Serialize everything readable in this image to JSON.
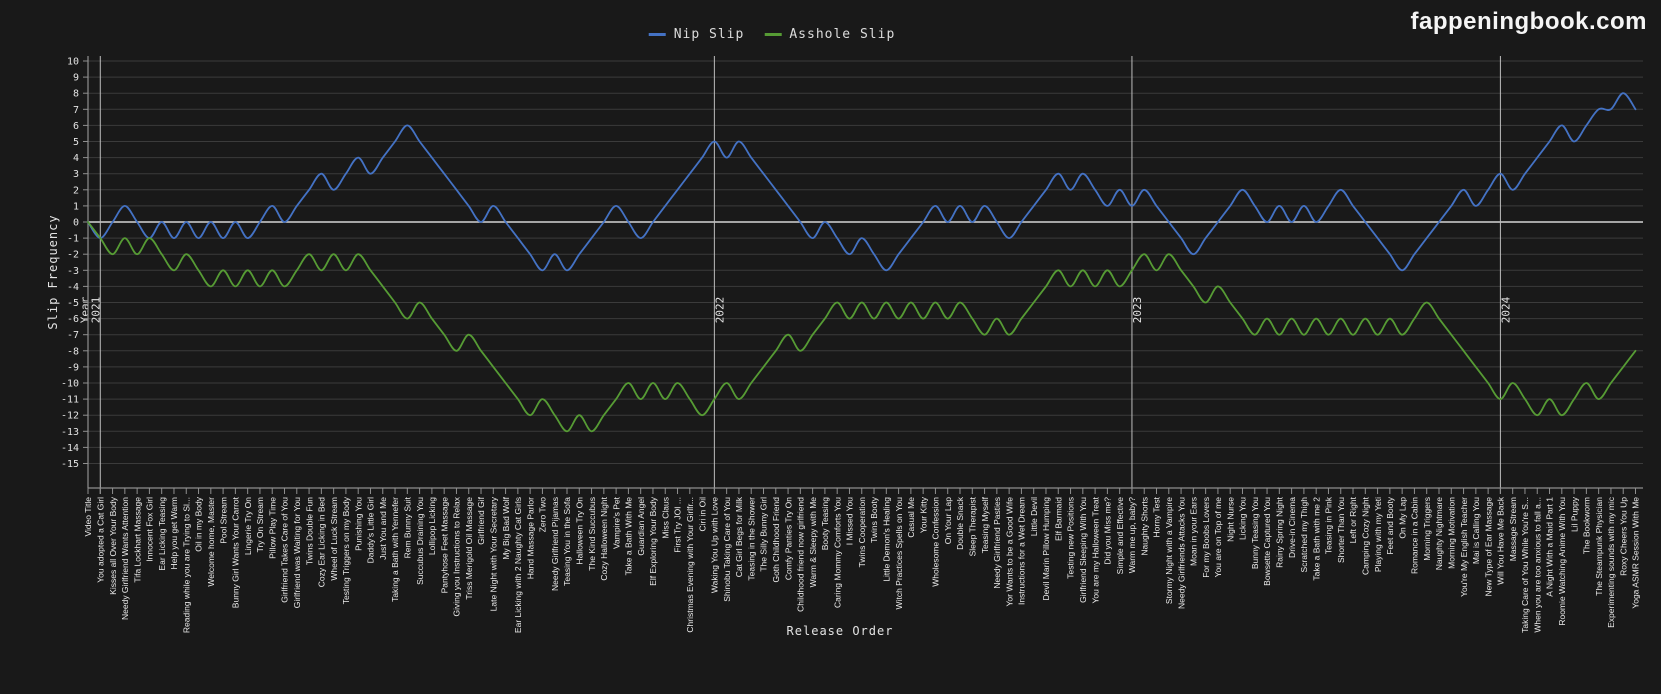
{
  "site": {
    "logo": "fappeningbook.com"
  },
  "colors": {
    "background": "#191919",
    "grid": "#3b3b3b",
    "zero_line": "#d4d4d4",
    "year_line": "#bdbdbd",
    "spine": "#8f8f8f",
    "tick_text": "#e3e3e3",
    "category_text": "#ececec",
    "nip_slip": "#4472c4",
    "asshole_slip": "#569b34"
  },
  "chart_data": {
    "type": "line",
    "title": "",
    "xlabel": "Release Order",
    "ylabel": "Slip Frequency",
    "ylim": [
      -15,
      10
    ],
    "grid": true,
    "legend_position": "top-center",
    "yticks": [
      10,
      9,
      8,
      7,
      6,
      5,
      4,
      3,
      2,
      1,
      0,
      -1,
      -2,
      -3,
      -4,
      -5,
      -6,
      -7,
      -8,
      -9,
      -10,
      -11,
      -12,
      -13,
      -14,
      -15
    ],
    "year_markers": [
      {
        "index": 1,
        "labels": [
          "Year",
          "2021"
        ]
      },
      {
        "index": 51,
        "labels": [
          "2022"
        ]
      },
      {
        "index": 85,
        "labels": [
          "2023"
        ]
      },
      {
        "index": 115,
        "labels": [
          "2024"
        ]
      }
    ],
    "categories": [
      "Video Title",
      "You adopted a Cat Girl",
      "Kisses all Over Your Body",
      "Needy Girlfriend Wants Attention",
      "Tifa Lockhart Massage",
      "Innocent Fox Girl",
      "Ear Licking Teasing",
      "Help you get Warm",
      "Reading while you are Trying to Sl...",
      "Oil in my Body",
      "Welcome home, Master",
      "Pool Stream",
      "Bunny Girl Wants Your Carrot",
      "Lingerie Try On",
      "Try On Stream",
      "Pillow Play Time",
      "Girlfriend Takes Care of You",
      "Girlfriend was Waiting for You",
      "Twins Double Fun",
      "Cozy Ear Licking in Bed",
      "Wheel of Luck Stream",
      "Testing Triggers on my Body",
      "Punishing You",
      "Daddy's Little Girl",
      "Just You and Me",
      "Taking a Bath with Yennefer",
      "Rem Bunny Suit",
      "Succubus Draining You",
      "Lollipop Licking",
      "Pantyhose Feet Massage",
      "Giving you Instructions to Relax",
      "Triss Merigold Oil Massage",
      "Girlfriend Gif",
      "Late Night with Your Secretary",
      "My Big Bad Wolf",
      "Ear Licking with 2 Naughty Cat Girls",
      "Hand Massage Parlor",
      "Zero Two",
      "Needy Girlfriend Pijamas",
      "Teasing You in the Sofa",
      "Halloween Try On",
      "The Kind Succubus",
      "Cozy Halloween Night",
      "Vampire's Pet",
      "Take a Bath With Me",
      "Guardian Angel",
      "Elf Exploring Your Body",
      "Miss Claus",
      "First Try JOI ...",
      "Christmas Evening with Your Girlfr...",
      "Ciri in Oil",
      "Waking You Up with Love",
      "Shinobu Taking Care of You",
      "Cat Girl Begs for Milk",
      "Teasing in the Shower",
      "The Silly Bunny Girl",
      "Goth Childhood Friend",
      "Comfy Panties Try On",
      "Childhood friend now girlfriend",
      "Warm & Sleepy with Me",
      "Booty Teasing",
      "Caring Mommy Comforts You",
      "I Missed You",
      "Twins Cooperation",
      "Twins Booty",
      "Little Demon's Healing",
      "Witch Practices Spells on You",
      "Casual Me",
      "Your Kitty",
      "Wholesome Confession",
      "On Your Lap",
      "Double Snack",
      "Sleep Therapist",
      "Teasing Myself",
      "Needy Girlfriend Pasties",
      "Yor Wants to be a Good Wife",
      "Instructions for a Wet Dream",
      "Little Devil",
      "Devil Marin Pillow Humping",
      "Elf Barmaid",
      "Testing new Positions",
      "Girlfriend Sleeping With You",
      "You are my Halloween Treat",
      "Did you Miss me?",
      "Simple and Effective",
      "Warm me up, baby?",
      "Naughty Shorts",
      "Horny Test",
      "Stormy Night with a Vampire",
      "Needy Girlfriends Attacks You",
      "Moan in your Ears",
      "For my Boobs Lovers",
      "You are on Top of me",
      "Night Nurse",
      "Licking You",
      "Bunny Teasing You",
      "Bowsette Captured You",
      "Rainy Spring Night",
      "Drive-in Cinema",
      "Scratched my Thigh",
      "Take a Bath with me 2",
      "Teasing in Pink",
      "Shorter Than You",
      "Left or Right",
      "Camping Cozy Night",
      "Playing with my Yeti",
      "Feet and Booty",
      "On My Lap",
      "Romance in a Cabin",
      "Morning Triggers",
      "Naughty Nightmare",
      "Morning Motivation",
      "You're My English Teacher",
      "Mai is Calling You",
      "New Type of Ear Massage",
      "Will You Have Me Back",
      "Massage Stream",
      "Taking Care of You While You're S...",
      "When you are too anxious to fall a...",
      "A Night With a Maid Part 1",
      "Roomie Watching Anime With You",
      "Lil Puppy",
      "The Bookworm",
      "The Steampunk Physician",
      "Experimenting sounds with my mic",
      "Roxy Cheers You Up",
      "Yoga ASMR Session With Me"
    ],
    "series": [
      {
        "name": "Nip Slip",
        "color": "#4472c4",
        "values": [
          0,
          -1,
          0,
          1,
          0,
          -1,
          0,
          -1,
          0,
          -1,
          0,
          -1,
          0,
          -1,
          0,
          1,
          0,
          1,
          2,
          3,
          2,
          3,
          4,
          3,
          4,
          5,
          6,
          5,
          4,
          3,
          2,
          1,
          0,
          1,
          0,
          -1,
          -2,
          -3,
          -2,
          -3,
          -2,
          -1,
          0,
          1,
          0,
          -1,
          0,
          1,
          2,
          3,
          4,
          5,
          4,
          5,
          4,
          3,
          2,
          1,
          0,
          -1,
          0,
          -1,
          -2,
          -1,
          -2,
          -3,
          -2,
          -1,
          0,
          1,
          0,
          1,
          0,
          1,
          0,
          -1,
          0,
          1,
          2,
          3,
          2,
          3,
          2,
          1,
          2,
          1,
          2,
          1,
          0,
          -1,
          -2,
          -1,
          0,
          1,
          2,
          1,
          0,
          1,
          0,
          1,
          0,
          1,
          2,
          1,
          0,
          -1,
          -2,
          -3,
          -2,
          -1,
          0,
          1,
          2,
          1,
          2,
          3,
          2,
          3,
          4,
          5,
          6,
          5,
          6,
          7,
          7,
          8,
          7
        ]
      },
      {
        "name": "Asshole Slip",
        "color": "#569b34",
        "values": [
          0,
          -1,
          -2,
          -1,
          -2,
          -1,
          -2,
          -3,
          -2,
          -3,
          -4,
          -3,
          -4,
          -3,
          -4,
          -3,
          -4,
          -3,
          -2,
          -3,
          -2,
          -3,
          -2,
          -3,
          -4,
          -5,
          -6,
          -5,
          -6,
          -7,
          -8,
          -7,
          -8,
          -9,
          -10,
          -11,
          -12,
          -11,
          -12,
          -13,
          -12,
          -13,
          -12,
          -11,
          -10,
          -11,
          -10,
          -11,
          -10,
          -11,
          -12,
          -11,
          -10,
          -11,
          -10,
          -9,
          -8,
          -7,
          -8,
          -7,
          -6,
          -5,
          -6,
          -5,
          -6,
          -5,
          -6,
          -5,
          -6,
          -5,
          -6,
          -5,
          -6,
          -7,
          -6,
          -7,
          -6,
          -5,
          -4,
          -3,
          -4,
          -3,
          -4,
          -3,
          -4,
          -3,
          -2,
          -3,
          -2,
          -3,
          -4,
          -5,
          -4,
          -5,
          -6,
          -7,
          -6,
          -7,
          -6,
          -7,
          -6,
          -7,
          -6,
          -7,
          -6,
          -7,
          -6,
          -7,
          -6,
          -5,
          -6,
          -7,
          -8,
          -9,
          -10,
          -11,
          -10,
          -11,
          -12,
          -11,
          -12,
          -11,
          -10,
          -11,
          -10,
          -9,
          -8
        ]
      }
    ]
  }
}
